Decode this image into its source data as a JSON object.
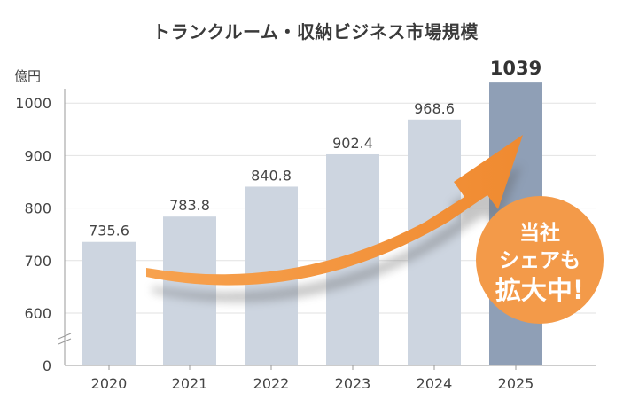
{
  "chart_data": {
    "type": "bar",
    "title": "トランクルーム・収納ビジネス市場規模",
    "ylabel": "億円",
    "categories": [
      "2020",
      "2021",
      "2022",
      "2023",
      "2024",
      "2025"
    ],
    "values": [
      735.6,
      783.8,
      840.8,
      902.4,
      968.6,
      1039
    ],
    "value_labels": [
      "735.6",
      "783.8",
      "840.8",
      "902.4",
      "968.6",
      "1039"
    ],
    "y_ticks": [
      0,
      600,
      700,
      800,
      900,
      1000
    ],
    "y_tick_labels": [
      "0",
      "600",
      "700",
      "800",
      "900",
      "1000"
    ],
    "y_axis_break": true,
    "grid": true,
    "highlight_index": 5,
    "colors": {
      "bar": "#cdd5e0",
      "highlight_bar": "#8f9fb6",
      "arrow": "#f0913a",
      "badge": "#f39a49"
    }
  },
  "badge": {
    "line1": "当社",
    "line2": "シェアも",
    "line3": "拡大中!"
  }
}
